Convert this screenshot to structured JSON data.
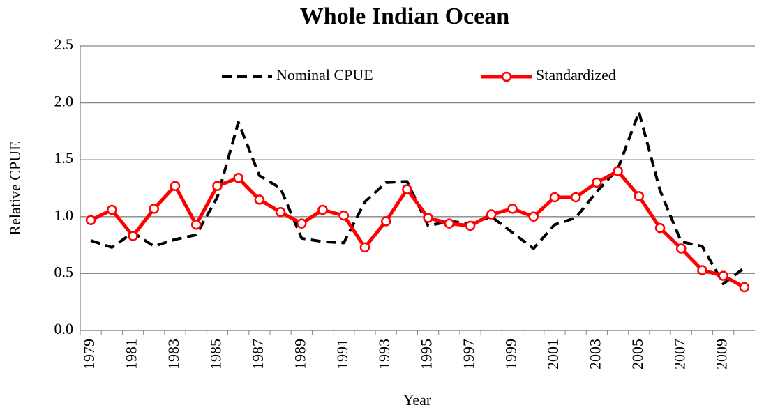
{
  "chart_data": {
    "type": "line",
    "title": "Whole Indian Ocean",
    "x_label": "Year",
    "y_label": "Relative CPUE",
    "categories": [
      "1979",
      null,
      "1981",
      null,
      "1983",
      null,
      "1985",
      null,
      "1987",
      null,
      "1989",
      null,
      "1991",
      null,
      "1993",
      null,
      "1995",
      null,
      "1997",
      null,
      "1999",
      null,
      "2001",
      null,
      "2003",
      null,
      "2005",
      null,
      "2007",
      null,
      "2009",
      null
    ],
    "series": [
      {
        "name": "Nominal CPUE",
        "color": "#000000",
        "dashed": true,
        "markers": false,
        "values": [
          0.79,
          0.73,
          0.86,
          0.74,
          0.8,
          0.84,
          1.17,
          1.83,
          1.36,
          1.25,
          0.81,
          0.78,
          0.77,
          1.13,
          1.3,
          1.31,
          0.92,
          0.96,
          0.94,
          1.0,
          0.86,
          0.72,
          0.93,
          0.99,
          1.22,
          1.42,
          1.92,
          1.23,
          0.78,
          0.74,
          0.41,
          0.55
        ]
      },
      {
        "name": "Standardized",
        "color": "#ff0000",
        "dashed": false,
        "markers": true,
        "values": [
          0.97,
          1.06,
          0.83,
          1.07,
          1.27,
          0.93,
          1.27,
          1.34,
          1.15,
          1.04,
          0.94,
          1.06,
          1.01,
          0.73,
          0.96,
          1.24,
          0.99,
          0.94,
          0.92,
          1.02,
          1.07,
          1.0,
          1.17,
          1.17,
          1.3,
          1.4,
          1.18,
          0.9,
          0.72,
          0.53,
          0.48,
          0.38
        ]
      }
    ],
    "ylim": [
      0,
      2.5
    ],
    "yticks": [
      {
        "value": 0,
        "label": "0.0"
      },
      0.5,
      {
        "value": 1,
        "label": "1.0"
      },
      1.5,
      {
        "value": 2,
        "label": "2.0"
      },
      2.5
    ],
    "grid": true,
    "legend": "top"
  }
}
